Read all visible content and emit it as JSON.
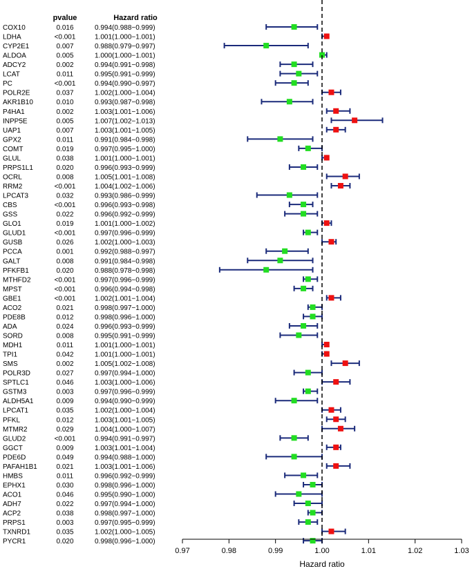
{
  "chart_data": {
    "type": "forest",
    "columns": {
      "pvalue": "pvalue",
      "hr": "Hazard ratio"
    },
    "xlabel": "Hazard ratio",
    "xlim": [
      0.97,
      1.03
    ],
    "xticks": [
      "0.97",
      "0.98",
      "0.99",
      "1.00",
      "1.01",
      "1.02",
      "1.03"
    ],
    "reference_line": 1.0,
    "colors": {
      "protective": "#22dd22",
      "risk": "#ee1111",
      "ci": "#1a2a7a"
    },
    "rows": [
      {
        "gene": "COX10",
        "pvalue": "0.016",
        "hr_text": "0.994(0.988−0.999)",
        "hr": 0.994,
        "lo": 0.988,
        "hi": 0.999
      },
      {
        "gene": "LDHA",
        "pvalue": "<0.001",
        "hr_text": "1.001(1.000−1.001)",
        "hr": 1.001,
        "lo": 1.0,
        "hi": 1.001
      },
      {
        "gene": "CYP2E1",
        "pvalue": "0.007",
        "hr_text": "0.988(0.979−0.997)",
        "hr": 0.988,
        "lo": 0.979,
        "hi": 0.997
      },
      {
        "gene": "ALDOA",
        "pvalue": "0.005",
        "hr_text": "1.000(1.000−1.001)",
        "hr": 1.0,
        "lo": 1.0,
        "hi": 1.001
      },
      {
        "gene": "ADCY2",
        "pvalue": "0.002",
        "hr_text": "0.994(0.991−0.998)",
        "hr": 0.994,
        "lo": 0.991,
        "hi": 0.998
      },
      {
        "gene": "LCAT",
        "pvalue": "0.011",
        "hr_text": "0.995(0.991−0.999)",
        "hr": 0.995,
        "lo": 0.991,
        "hi": 0.999
      },
      {
        "gene": "PC",
        "pvalue": "<0.001",
        "hr_text": "0.994(0.990−0.997)",
        "hr": 0.994,
        "lo": 0.99,
        "hi": 0.997
      },
      {
        "gene": "POLR2E",
        "pvalue": "0.037",
        "hr_text": "1.002(1.000−1.004)",
        "hr": 1.002,
        "lo": 1.0,
        "hi": 1.004
      },
      {
        "gene": "AKR1B10",
        "pvalue": "0.010",
        "hr_text": "0.993(0.987−0.998)",
        "hr": 0.993,
        "lo": 0.987,
        "hi": 0.998
      },
      {
        "gene": "P4HA1",
        "pvalue": "0.002",
        "hr_text": "1.003(1.001−1.006)",
        "hr": 1.003,
        "lo": 1.001,
        "hi": 1.006
      },
      {
        "gene": "INPP5E",
        "pvalue": "0.005",
        "hr_text": "1.007(1.002−1.013)",
        "hr": 1.007,
        "lo": 1.002,
        "hi": 1.013
      },
      {
        "gene": "UAP1",
        "pvalue": "0.007",
        "hr_text": "1.003(1.001−1.005)",
        "hr": 1.003,
        "lo": 1.001,
        "hi": 1.005
      },
      {
        "gene": "GPX2",
        "pvalue": "0.011",
        "hr_text": "0.991(0.984−0.998)",
        "hr": 0.991,
        "lo": 0.984,
        "hi": 0.998
      },
      {
        "gene": "COMT",
        "pvalue": "0.019",
        "hr_text": "0.997(0.995−1.000)",
        "hr": 0.997,
        "lo": 0.995,
        "hi": 1.0
      },
      {
        "gene": "GLUL",
        "pvalue": "0.038",
        "hr_text": "1.001(1.000−1.001)",
        "hr": 1.001,
        "lo": 1.0,
        "hi": 1.001
      },
      {
        "gene": "PRPS1L1",
        "pvalue": "0.020",
        "hr_text": "0.996(0.993−0.999)",
        "hr": 0.996,
        "lo": 0.993,
        "hi": 0.999
      },
      {
        "gene": "OCRL",
        "pvalue": "0.008",
        "hr_text": "1.005(1.001−1.008)",
        "hr": 1.005,
        "lo": 1.001,
        "hi": 1.008
      },
      {
        "gene": "RRM2",
        "pvalue": "<0.001",
        "hr_text": "1.004(1.002−1.006)",
        "hr": 1.004,
        "lo": 1.002,
        "hi": 1.006
      },
      {
        "gene": "LPCAT3",
        "pvalue": "0.032",
        "hr_text": "0.993(0.986−0.999)",
        "hr": 0.993,
        "lo": 0.986,
        "hi": 0.999
      },
      {
        "gene": "CBS",
        "pvalue": "<0.001",
        "hr_text": "0.996(0.993−0.998)",
        "hr": 0.996,
        "lo": 0.993,
        "hi": 0.998
      },
      {
        "gene": "GSS",
        "pvalue": "0.022",
        "hr_text": "0.996(0.992−0.999)",
        "hr": 0.996,
        "lo": 0.992,
        "hi": 0.999
      },
      {
        "gene": "GLO1",
        "pvalue": "0.019",
        "hr_text": "1.001(1.000−1.002)",
        "hr": 1.001,
        "lo": 1.0,
        "hi": 1.002
      },
      {
        "gene": "GLUD1",
        "pvalue": "<0.001",
        "hr_text": "0.997(0.996−0.999)",
        "hr": 0.997,
        "lo": 0.996,
        "hi": 0.999
      },
      {
        "gene": "GUSB",
        "pvalue": "0.026",
        "hr_text": "1.002(1.000−1.003)",
        "hr": 1.002,
        "lo": 1.0,
        "hi": 1.003
      },
      {
        "gene": "PCCA",
        "pvalue": "0.001",
        "hr_text": "0.992(0.988−0.997)",
        "hr": 0.992,
        "lo": 0.988,
        "hi": 0.997
      },
      {
        "gene": "GALT",
        "pvalue": "0.008",
        "hr_text": "0.991(0.984−0.998)",
        "hr": 0.991,
        "lo": 0.984,
        "hi": 0.998
      },
      {
        "gene": "PFKFB1",
        "pvalue": "0.020",
        "hr_text": "0.988(0.978−0.998)",
        "hr": 0.988,
        "lo": 0.978,
        "hi": 0.998
      },
      {
        "gene": "MTHFD2",
        "pvalue": "<0.001",
        "hr_text": "0.997(0.996−0.999)",
        "hr": 0.997,
        "lo": 0.996,
        "hi": 0.999
      },
      {
        "gene": "MPST",
        "pvalue": "<0.001",
        "hr_text": "0.996(0.994−0.998)",
        "hr": 0.996,
        "lo": 0.994,
        "hi": 0.998
      },
      {
        "gene": "GBE1",
        "pvalue": "<0.001",
        "hr_text": "1.002(1.001−1.004)",
        "hr": 1.002,
        "lo": 1.001,
        "hi": 1.004
      },
      {
        "gene": "ACO2",
        "pvalue": "0.021",
        "hr_text": "0.998(0.997−1.000)",
        "hr": 0.998,
        "lo": 0.997,
        "hi": 1.0
      },
      {
        "gene": "PDE8B",
        "pvalue": "0.012",
        "hr_text": "0.998(0.996−1.000)",
        "hr": 0.998,
        "lo": 0.996,
        "hi": 1.0
      },
      {
        "gene": "ADA",
        "pvalue": "0.024",
        "hr_text": "0.996(0.993−0.999)",
        "hr": 0.996,
        "lo": 0.993,
        "hi": 0.999
      },
      {
        "gene": "SORD",
        "pvalue": "0.008",
        "hr_text": "0.995(0.991−0.999)",
        "hr": 0.995,
        "lo": 0.991,
        "hi": 0.999
      },
      {
        "gene": "MDH1",
        "pvalue": "0.011",
        "hr_text": "1.001(1.000−1.001)",
        "hr": 1.001,
        "lo": 1.0,
        "hi": 1.001
      },
      {
        "gene": "TPI1",
        "pvalue": "0.042",
        "hr_text": "1.001(1.000−1.001)",
        "hr": 1.001,
        "lo": 1.0,
        "hi": 1.001
      },
      {
        "gene": "SMS",
        "pvalue": "0.002",
        "hr_text": "1.005(1.002−1.008)",
        "hr": 1.005,
        "lo": 1.002,
        "hi": 1.008
      },
      {
        "gene": "POLR3D",
        "pvalue": "0.027",
        "hr_text": "0.997(0.994−1.000)",
        "hr": 0.997,
        "lo": 0.994,
        "hi": 1.0
      },
      {
        "gene": "SPTLC1",
        "pvalue": "0.046",
        "hr_text": "1.003(1.000−1.006)",
        "hr": 1.003,
        "lo": 1.0,
        "hi": 1.006
      },
      {
        "gene": "GSTM3",
        "pvalue": "0.003",
        "hr_text": "0.997(0.996−0.999)",
        "hr": 0.997,
        "lo": 0.996,
        "hi": 0.999
      },
      {
        "gene": "ALDH5A1",
        "pvalue": "0.009",
        "hr_text": "0.994(0.990−0.999)",
        "hr": 0.994,
        "lo": 0.99,
        "hi": 0.999
      },
      {
        "gene": "LPCAT1",
        "pvalue": "0.035",
        "hr_text": "1.002(1.000−1.004)",
        "hr": 1.002,
        "lo": 1.0,
        "hi": 1.004
      },
      {
        "gene": "PFKL",
        "pvalue": "0.012",
        "hr_text": "1.003(1.001−1.005)",
        "hr": 1.003,
        "lo": 1.001,
        "hi": 1.005
      },
      {
        "gene": "MTMR2",
        "pvalue": "0.029",
        "hr_text": "1.004(1.000−1.007)",
        "hr": 1.004,
        "lo": 1.0,
        "hi": 1.007
      },
      {
        "gene": "GLUD2",
        "pvalue": "<0.001",
        "hr_text": "0.994(0.991−0.997)",
        "hr": 0.994,
        "lo": 0.991,
        "hi": 0.997
      },
      {
        "gene": "GGCT",
        "pvalue": "0.009",
        "hr_text": "1.003(1.001−1.004)",
        "hr": 1.003,
        "lo": 1.001,
        "hi": 1.004
      },
      {
        "gene": "PDE6D",
        "pvalue": "0.049",
        "hr_text": "0.994(0.988−1.000)",
        "hr": 0.994,
        "lo": 0.988,
        "hi": 1.0
      },
      {
        "gene": "PAFAH1B1",
        "pvalue": "0.021",
        "hr_text": "1.003(1.001−1.006)",
        "hr": 1.003,
        "lo": 1.001,
        "hi": 1.006
      },
      {
        "gene": "HMBS",
        "pvalue": "0.011",
        "hr_text": "0.996(0.992−0.999)",
        "hr": 0.996,
        "lo": 0.992,
        "hi": 0.999
      },
      {
        "gene": "EPHX1",
        "pvalue": "0.030",
        "hr_text": "0.998(0.996−1.000)",
        "hr": 0.998,
        "lo": 0.996,
        "hi": 1.0
      },
      {
        "gene": "ACO1",
        "pvalue": "0.046",
        "hr_text": "0.995(0.990−1.000)",
        "hr": 0.995,
        "lo": 0.99,
        "hi": 1.0
      },
      {
        "gene": "ADH7",
        "pvalue": "0.022",
        "hr_text": "0.997(0.994−1.000)",
        "hr": 0.997,
        "lo": 0.994,
        "hi": 1.0
      },
      {
        "gene": "ACP2",
        "pvalue": "0.038",
        "hr_text": "0.998(0.997−1.000)",
        "hr": 0.998,
        "lo": 0.997,
        "hi": 1.0
      },
      {
        "gene": "PRPS1",
        "pvalue": "0.003",
        "hr_text": "0.997(0.995−0.999)",
        "hr": 0.997,
        "lo": 0.995,
        "hi": 0.999
      },
      {
        "gene": "TXNRD1",
        "pvalue": "0.035",
        "hr_text": "1.002(1.000−1.005)",
        "hr": 1.002,
        "lo": 1.0,
        "hi": 1.005
      },
      {
        "gene": "PYCR1",
        "pvalue": "0.020",
        "hr_text": "0.998(0.996−1.000)",
        "hr": 0.998,
        "lo": 0.996,
        "hi": 1.0
      }
    ]
  }
}
